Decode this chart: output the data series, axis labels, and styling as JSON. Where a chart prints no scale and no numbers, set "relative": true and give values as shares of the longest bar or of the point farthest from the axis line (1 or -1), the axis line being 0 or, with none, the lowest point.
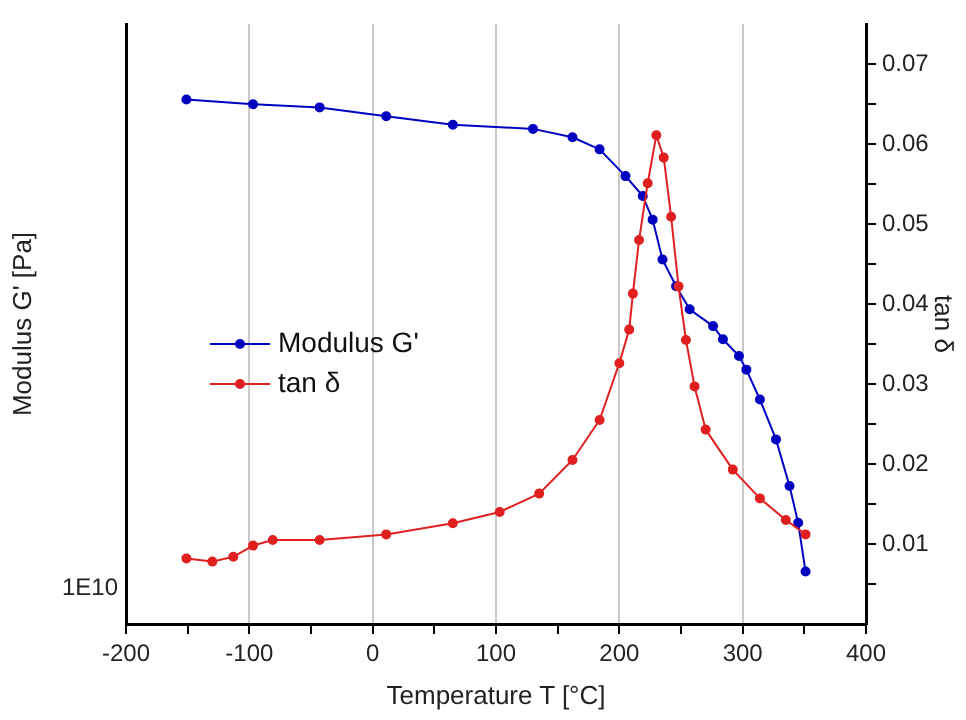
{
  "chart_data": {
    "type": "line",
    "xlabel": "Temperature T [°C]",
    "ylabel": "Modulus G' [Pa]",
    "y2label": "tan δ",
    "xlim": [
      -200,
      400
    ],
    "xticks": [
      -200,
      {
        "value": -150,
        "label": null
      },
      -100,
      {
        "value": -50,
        "label": null
      },
      0,
      {
        "value": 50,
        "label": null
      },
      100,
      {
        "value": 150,
        "label": null
      },
      200,
      {
        "value": 250,
        "label": null
      },
      300,
      {
        "value": 350,
        "label": null
      },
      400
    ],
    "relative": true,
    "annotations": [
      "1E10"
    ],
    "y2lim": [
      0,
      0.075
    ],
    "y2ticks": [
      {
        "value": 0.005,
        "label": null
      },
      0.01,
      {
        "value": 0.015,
        "label": null
      },
      0.02,
      {
        "value": 0.025,
        "label": null
      },
      0.03,
      {
        "value": 0.035,
        "label": null
      },
      0.04,
      {
        "value": 0.045,
        "label": null
      },
      0.05,
      {
        "value": 0.055,
        "label": null
      },
      0.06,
      {
        "value": 0.065,
        "label": null
      },
      0.07
    ],
    "grid": "x",
    "legend": "left",
    "marker": "circle",
    "line_style": "solid",
    "series": [
      {
        "name": "Modulus G'",
        "color": "#0000c0",
        "x": [
          -151,
          -97,
          -43,
          11,
          65,
          130,
          162,
          184,
          205,
          219,
          227,
          235,
          246,
          257,
          276,
          284,
          297,
          303,
          314,
          327,
          338,
          345,
          351
        ],
        "values": [
          1,
          0.991,
          0.985,
          0.968,
          0.952,
          0.944,
          0.928,
          0.905,
          0.854,
          0.816,
          0.771,
          0.695,
          0.644,
          0.6,
          0.568,
          0.543,
          0.511,
          0.485,
          0.428,
          0.352,
          0.263,
          0.193,
          0.1
        ]
      },
      {
        "name": "tan δ",
        "color": "#e02020",
        "axis": "y2",
        "x": [
          -151,
          -130,
          -113,
          -97,
          -81,
          -43,
          11,
          65,
          103,
          135,
          162,
          184,
          200,
          208,
          211,
          216,
          223,
          230,
          236,
          242,
          248,
          254,
          261,
          270,
          292,
          314,
          335,
          351
        ],
        "values": [
          0.0082,
          0.0078,
          0.0084,
          0.0098,
          0.0105,
          0.0105,
          0.0112,
          0.0126,
          0.014,
          0.0163,
          0.0205,
          0.0255,
          0.0326,
          0.0368,
          0.0413,
          0.048,
          0.0551,
          0.0611,
          0.0583,
          0.0509,
          0.0422,
          0.0355,
          0.0297,
          0.0243,
          0.0193,
          0.0157,
          0.013,
          0.0112
        ]
      }
    ]
  }
}
